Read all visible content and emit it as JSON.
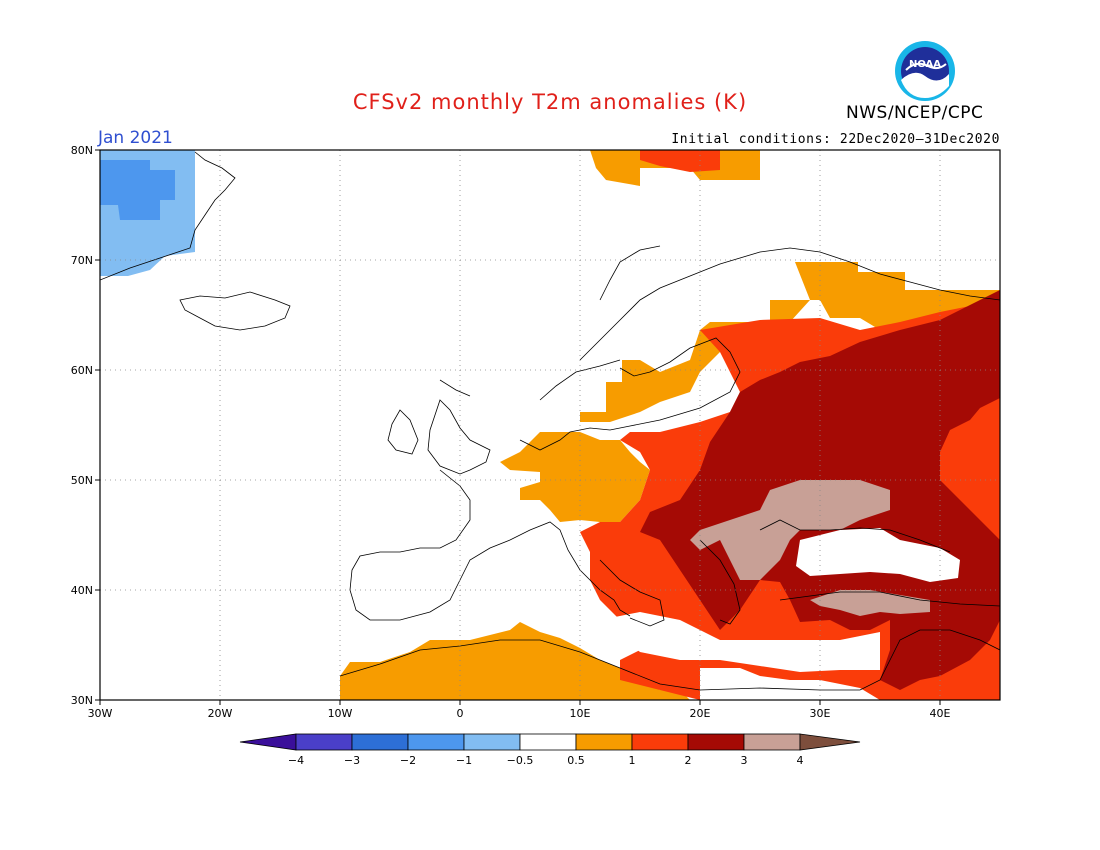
{
  "header": {
    "title": "CFSv2 monthly T2m anomalies (K)",
    "agency": "NWS/NCEP/CPC",
    "month": "Jan 2021",
    "initial_conditions": "Initial conditions: 22Dec2020–31Dec2020",
    "logo_text": "NOAA"
  },
  "axes": {
    "lat_labels": [
      "80N",
      "70N",
      "60N",
      "50N",
      "40N",
      "30N"
    ],
    "lon_labels": [
      "30W",
      "20W",
      "10W",
      "0",
      "10E",
      "20E",
      "30E",
      "40E"
    ],
    "lat_range": [
      30,
      80
    ],
    "lon_range": [
      -30,
      45
    ],
    "grid": "dotted"
  },
  "colorbar": {
    "labels": [
      "−4",
      "−3",
      "−2",
      "−1",
      "−0.5",
      "0.5",
      "1",
      "2",
      "3",
      "4"
    ],
    "colors": [
      "#3a0f9a",
      "#4a3fc8",
      "#2d6fd6",
      "#4d97ee",
      "#82bdf2",
      "#ffffff",
      "#f79c00",
      "#fa3c0a",
      "#a50a05",
      "#c8a096",
      "#7d4e3c"
    ]
  },
  "legend_colors": {
    "cool_light": "#82bdf2",
    "cool_mid": "#4d97ee",
    "warm_05_1": "#f79c00",
    "warm_1_2": "#fa3c0a",
    "warm_2_3": "#a50a05",
    "warm_3_4": "#c8a096"
  }
}
